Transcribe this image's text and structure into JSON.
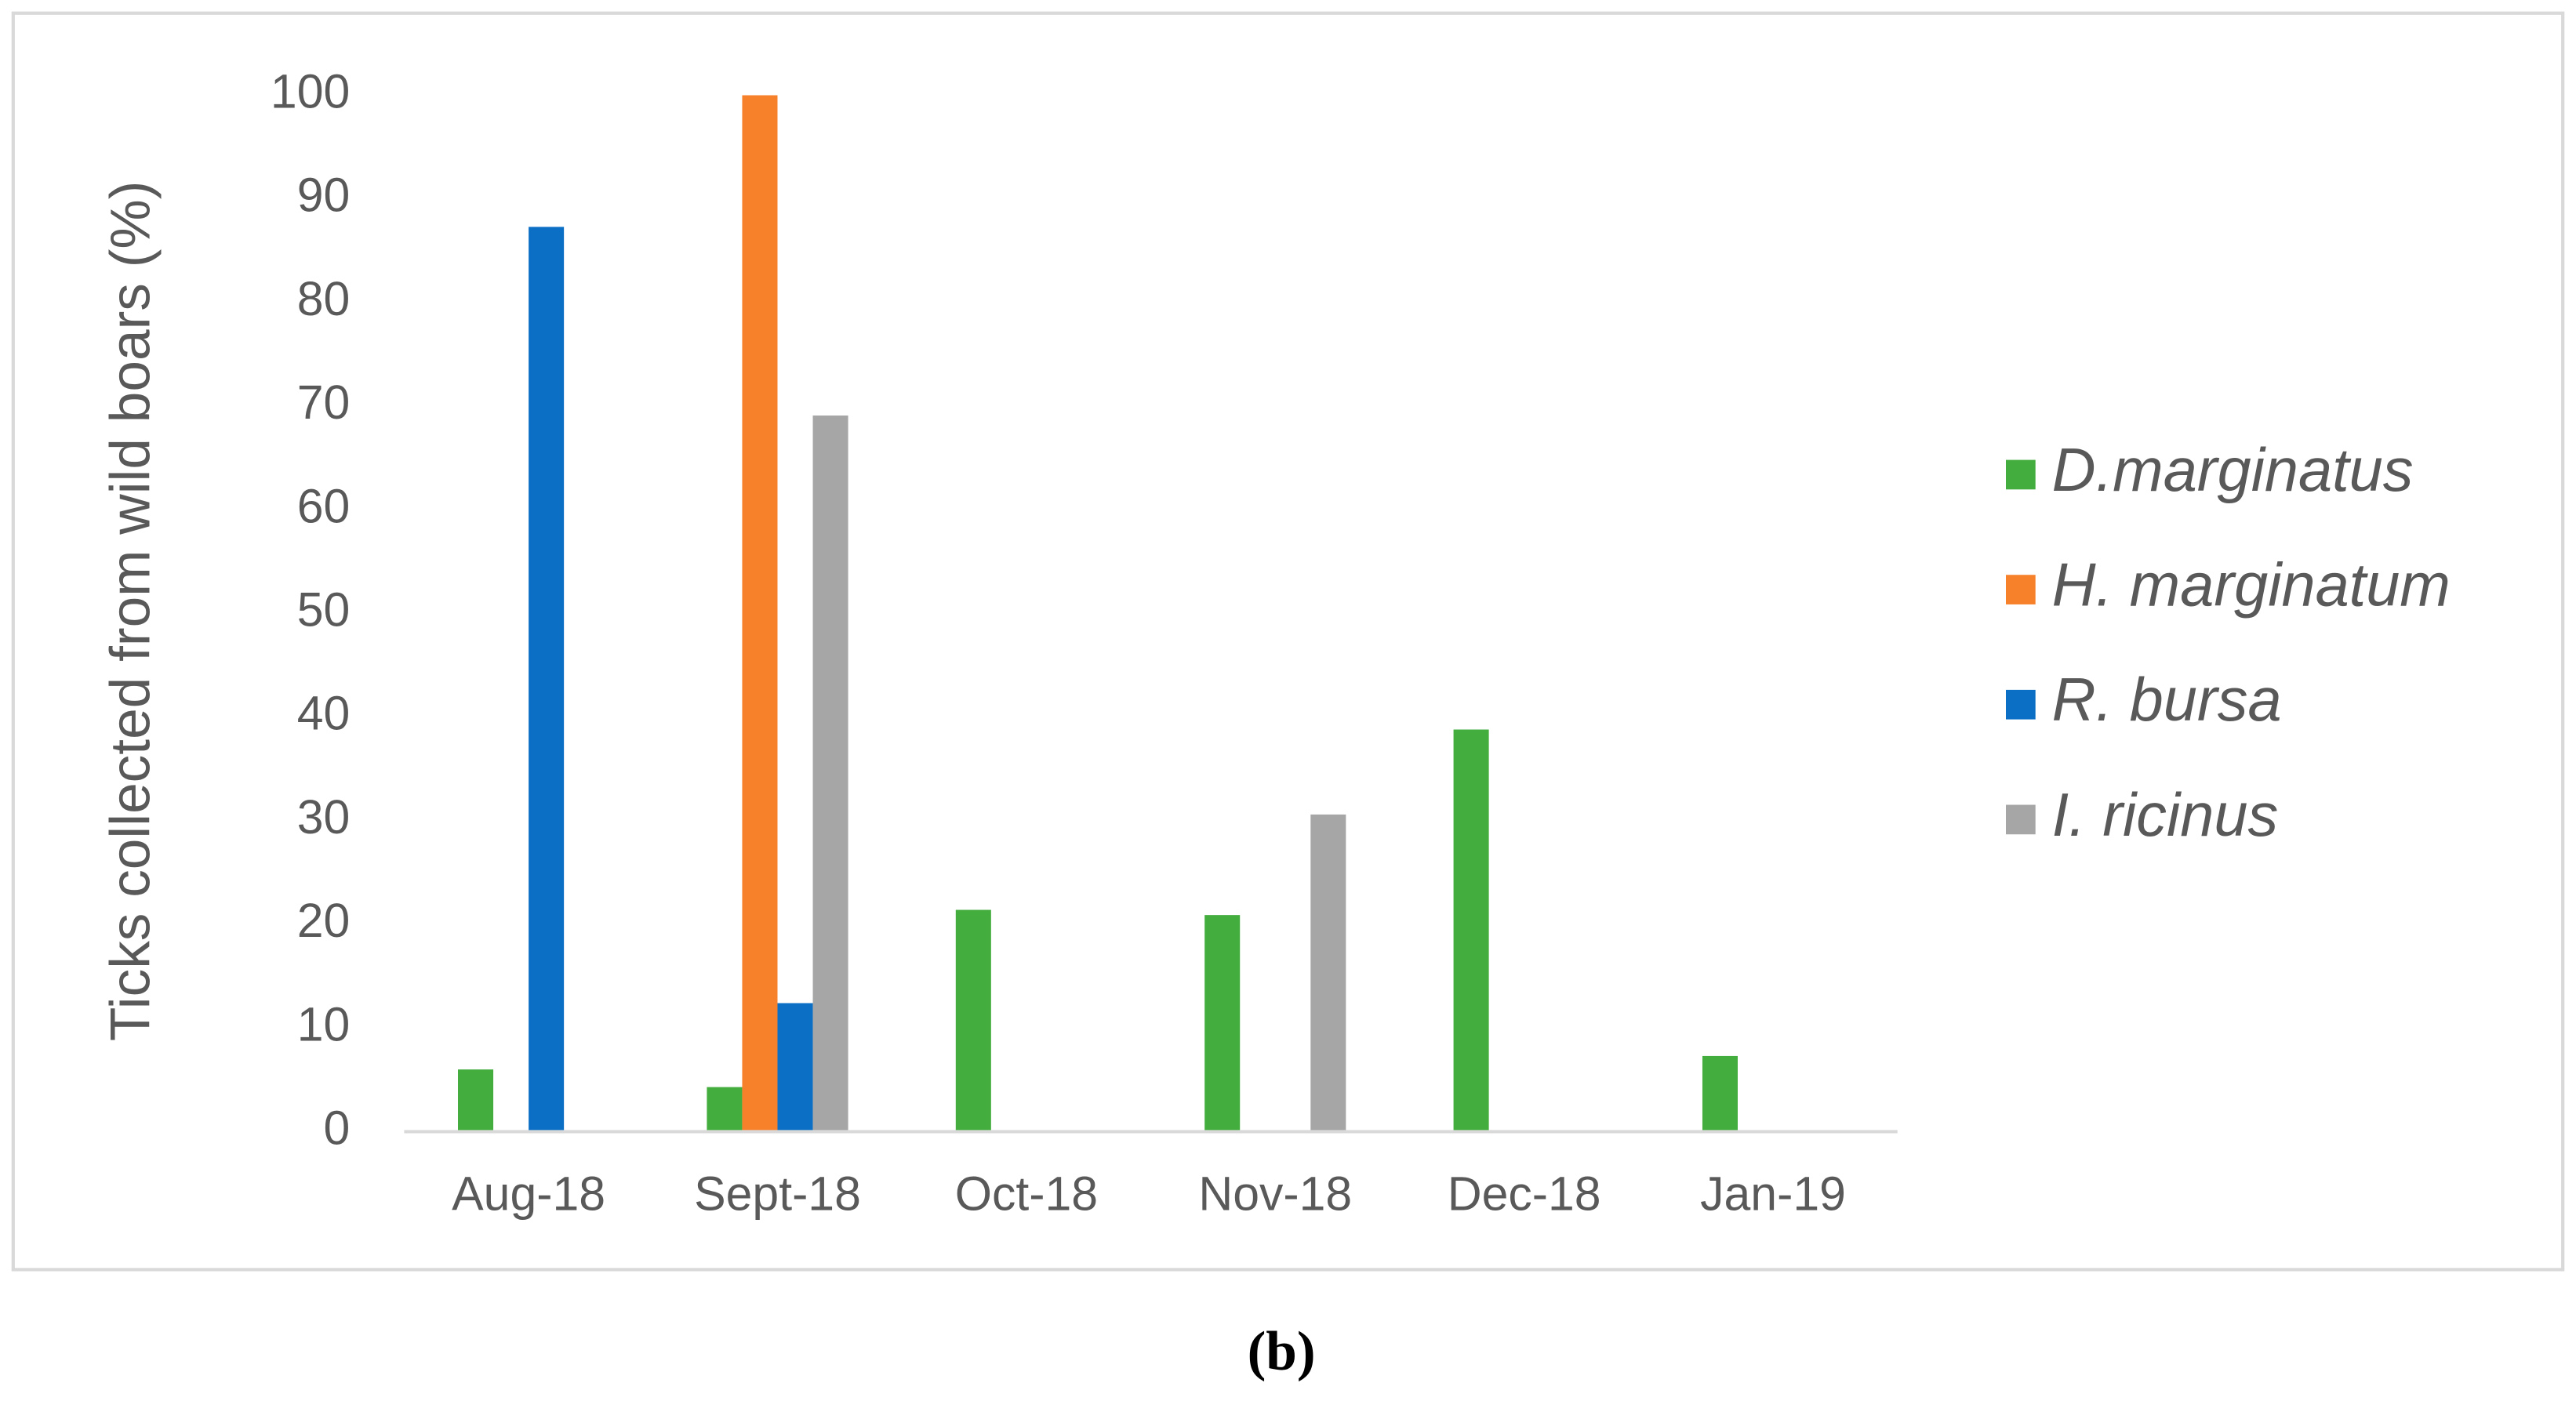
{
  "chart_data": {
    "type": "bar",
    "y_label": "Ticks collected from wild boars (%)",
    "caption": "(b)",
    "categories": [
      "Aug-18",
      "Sept-18",
      "Oct-18",
      "Nov-18",
      "Dec-18",
      "Jan-19"
    ],
    "series": [
      {
        "name": "D.marginatus",
        "color": "#43ad3d",
        "values": [
          6.0,
          4.3,
          21.4,
          20.9,
          38.8,
          7.3
        ]
      },
      {
        "name": "H. marginatum",
        "color": "#f7812a",
        "values": [
          null,
          100,
          null,
          null,
          null,
          null
        ]
      },
      {
        "name": "R. bursa",
        "color": "#0b6fc5",
        "values": [
          87.3,
          12.4,
          null,
          null,
          null,
          null
        ]
      },
      {
        "name": "I. ricinus",
        "color": "#a6a6a6",
        "values": [
          null,
          69.1,
          null,
          30.6,
          null,
          null
        ]
      }
    ],
    "ylim": [
      0,
      100
    ],
    "yticks": [
      0,
      10,
      20,
      30,
      40,
      50,
      60,
      70,
      80,
      90,
      100
    ],
    "grid": false,
    "legend": "right"
  }
}
